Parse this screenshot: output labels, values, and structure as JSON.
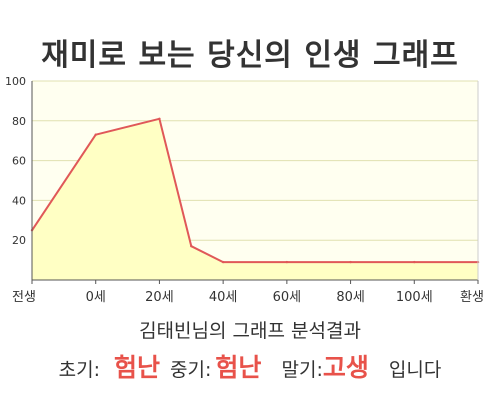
{
  "chart_data": {
    "type": "area",
    "title": "재미로 보는 당신의 인생 그래프",
    "x": [
      -20,
      0,
      20,
      30,
      40,
      60,
      80,
      100,
      120
    ],
    "series": [
      {
        "values": [
          25,
          73,
          81,
          17,
          9,
          9,
          9,
          9,
          9
        ]
      }
    ],
    "x_tick_values": [
      -20,
      0,
      20,
      40,
      60,
      80,
      100,
      120
    ],
    "x_tick_labels": [
      "전생",
      "0세",
      "20세",
      "40세",
      "60세",
      "80세",
      "100세",
      "환생"
    ],
    "y_ticks": [
      20,
      40,
      60,
      80,
      100
    ],
    "xlim": [
      -20,
      120
    ],
    "ylim": [
      0,
      100
    ],
    "grid": true,
    "colors": {
      "fill": "#ffffc4",
      "line": "#e05858",
      "plot_bg": "#fffff0",
      "grid": "#e0e0b0"
    }
  },
  "summary": {
    "text": "김태빈님의 그래프 분석결과"
  },
  "result": {
    "early_label": "초기:",
    "early_value": "험난",
    "middle_label": "중기:",
    "middle_value": "험난",
    "late_label": "말기:",
    "late_value": "고생",
    "suffix": "입니다"
  }
}
